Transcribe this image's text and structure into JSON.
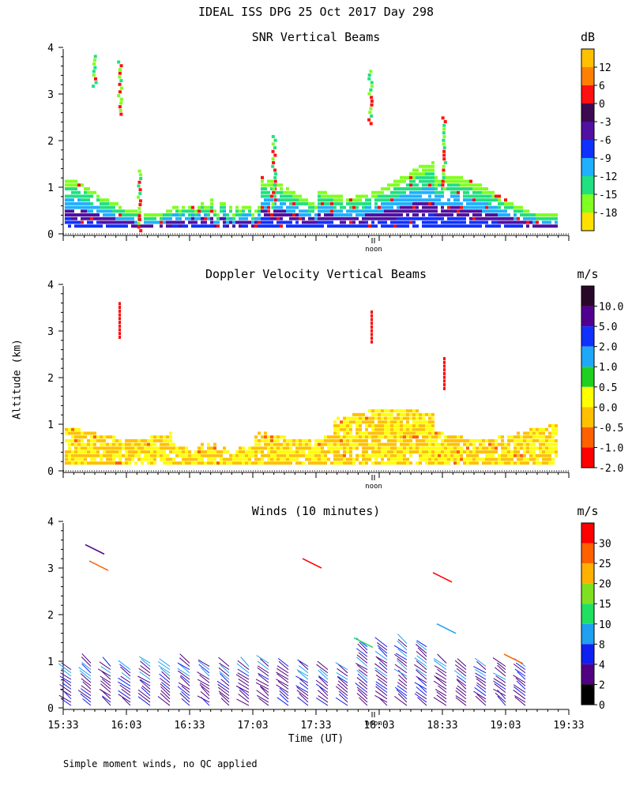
{
  "title": "IDEAL ISS DPG  25 Oct 2017 Day 298",
  "ylabel": "Altitude (km)",
  "xlabel": "Time (UT)",
  "footnote": "Simple moment winds, no QC applied",
  "noon_label": "noon",
  "chart_data": [
    {
      "type": "heatmap",
      "title": "SNR Vertical Beams",
      "unit": "dB",
      "ylim": [
        0,
        4
      ],
      "yticks": [
        "0",
        "1",
        "2",
        "3",
        "4"
      ],
      "colorbar": {
        "labels": [
          "12",
          "6",
          "0",
          "-3",
          "-6",
          "-9",
          "-12",
          "-15",
          "-18"
        ],
        "colors": [
          "#ffc000",
          "#ff8000",
          "#ff1010",
          "#3c0a50",
          "#5010a0",
          "#1030ff",
          "#20b0ff",
          "#20e080",
          "#80ff20",
          "#ffe000"
        ]
      }
    },
    {
      "type": "heatmap",
      "title": "Doppler Velocity Vertical Beams",
      "unit": "m/s",
      "ylim": [
        0,
        4
      ],
      "yticks": [
        "0",
        "1",
        "2",
        "3",
        "4"
      ],
      "colorbar": {
        "labels": [
          "10.0",
          "5.0",
          "2.0",
          "1.0",
          "0.5",
          "0.0",
          "-0.5",
          "-1.0",
          "-2.0"
        ],
        "colors": [
          "#280828",
          "#500090",
          "#1030ff",
          "#20a8f8",
          "#20d020",
          "#ffff00",
          "#ffc000",
          "#ff6000",
          "#ff0000"
        ]
      }
    },
    {
      "type": "scatter",
      "title": "Winds (10 minutes)",
      "unit": "m/s",
      "ylim": [
        0,
        4
      ],
      "yticks": [
        "0",
        "1",
        "2",
        "3",
        "4"
      ],
      "xticks": [
        "15:33",
        "16:03",
        "16:33",
        "17:03",
        "17:33",
        "18:03",
        "18:33",
        "19:03",
        "19:33"
      ],
      "colorbar": {
        "labels": [
          "30",
          "25",
          "20",
          "15",
          "10",
          "8",
          "4",
          "2",
          "0"
        ],
        "colors": [
          "#ff0000",
          "#ff6000",
          "#ffb000",
          "#80e020",
          "#20e060",
          "#20a0f0",
          "#1020f0",
          "#500080",
          "#000000"
        ]
      }
    }
  ]
}
